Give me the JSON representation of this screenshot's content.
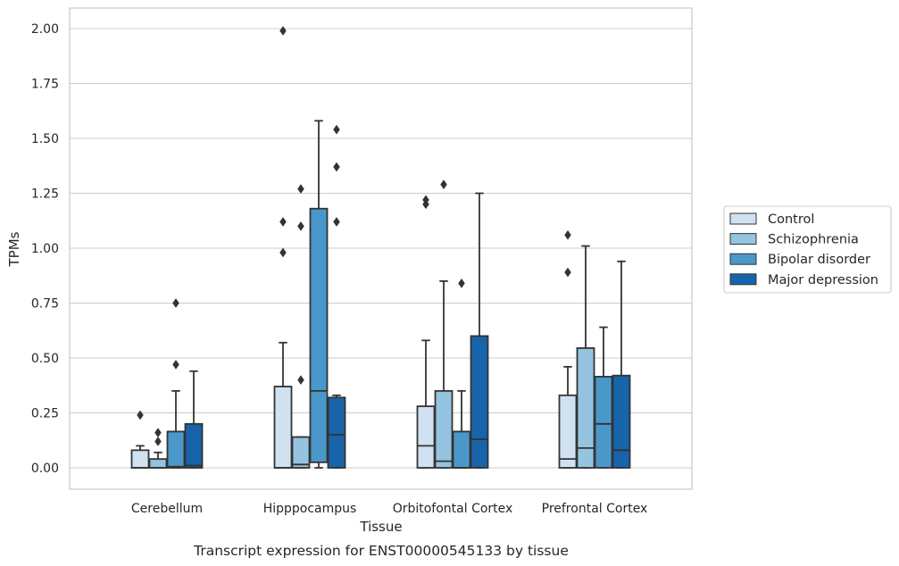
{
  "caption": "Transcript expression for ENST00000545133 by tissue",
  "chart_data": {
    "type": "box",
    "xlabel": "Tissue",
    "ylabel": "TPMs",
    "ylim": [
      -0.1,
      2.1
    ],
    "yticks": [
      0.0,
      0.25,
      0.5,
      0.75,
      1.0,
      1.25,
      1.5,
      1.75,
      2.0
    ],
    "ytick_labels": [
      "0.00",
      "0.25",
      "0.50",
      "0.75",
      "1.00",
      "1.25",
      "1.50",
      "1.75",
      "2.00"
    ],
    "grid": "horizontal",
    "legend_placement": "right",
    "categories": [
      "Cerebellum",
      "Hipppocampus",
      "Orbitofontal Cortex",
      "Prefrontal Cortex"
    ],
    "series": [
      {
        "name": "Control",
        "color": "#d0e1f2",
        "boxes": [
          {
            "whislo": 0.0,
            "q1": 0.0,
            "med": 0.0,
            "q3": 0.08,
            "whishi": 0.1,
            "fliers": [
              0.24
            ]
          },
          {
            "whislo": 0.0,
            "q1": 0.0,
            "med": 0.0,
            "q3": 0.37,
            "whishi": 0.57,
            "fliers": [
              0.98,
              1.12,
              1.99
            ]
          },
          {
            "whislo": 0.0,
            "q1": 0.0,
            "med": 0.1,
            "q3": 0.28,
            "whishi": 0.58,
            "fliers": [
              1.2,
              1.22
            ]
          },
          {
            "whislo": 0.0,
            "q1": 0.0,
            "med": 0.04,
            "q3": 0.33,
            "whishi": 0.46,
            "fliers": [
              0.89,
              1.06
            ]
          }
        ]
      },
      {
        "name": "Schizophrenia",
        "color": "#94c4df",
        "boxes": [
          {
            "whislo": 0.0,
            "q1": 0.0,
            "med": 0.0,
            "q3": 0.04,
            "whishi": 0.07,
            "fliers": [
              0.12,
              0.16
            ]
          },
          {
            "whislo": 0.0,
            "q1": 0.0,
            "med": 0.015,
            "q3": 0.14,
            "whishi": 0.14,
            "fliers": [
              0.4,
              1.1,
              1.27
            ]
          },
          {
            "whislo": 0.0,
            "q1": 0.0,
            "med": 0.03,
            "q3": 0.35,
            "whishi": 0.85,
            "fliers": [
              1.29
            ]
          },
          {
            "whislo": 0.0,
            "q1": 0.0,
            "med": 0.09,
            "q3": 0.545,
            "whishi": 1.01,
            "fliers": []
          }
        ]
      },
      {
        "name": "Bipolar disorder",
        "color": "#4a98c9",
        "boxes": [
          {
            "whislo": 0.0,
            "q1": 0.0,
            "med": 0.005,
            "q3": 0.165,
            "whishi": 0.35,
            "fliers": [
              0.47,
              0.75
            ]
          },
          {
            "whislo": 0.0,
            "q1": 0.025,
            "med": 0.35,
            "q3": 1.18,
            "whishi": 1.58,
            "fliers": []
          },
          {
            "whislo": 0.0,
            "q1": 0.0,
            "med": 0.0,
            "q3": 0.165,
            "whishi": 0.35,
            "fliers": [
              0.84
            ]
          },
          {
            "whislo": 0.0,
            "q1": 0.0,
            "med": 0.2,
            "q3": 0.415,
            "whishi": 0.64,
            "fliers": []
          }
        ]
      },
      {
        "name": "Major depression",
        "color": "#1764ab",
        "boxes": [
          {
            "whislo": 0.0,
            "q1": 0.0,
            "med": 0.01,
            "q3": 0.2,
            "whishi": 0.44,
            "fliers": []
          },
          {
            "whislo": 0.0,
            "q1": 0.0,
            "med": 0.15,
            "q3": 0.32,
            "whishi": 0.33,
            "fliers": [
              1.12,
              1.37,
              1.54
            ]
          },
          {
            "whislo": 0.0,
            "q1": 0.0,
            "med": 0.13,
            "q3": 0.6,
            "whishi": 1.25,
            "fliers": []
          },
          {
            "whislo": 0.0,
            "q1": 0.0,
            "med": 0.08,
            "q3": 0.42,
            "whishi": 0.94,
            "fliers": []
          }
        ]
      }
    ]
  }
}
